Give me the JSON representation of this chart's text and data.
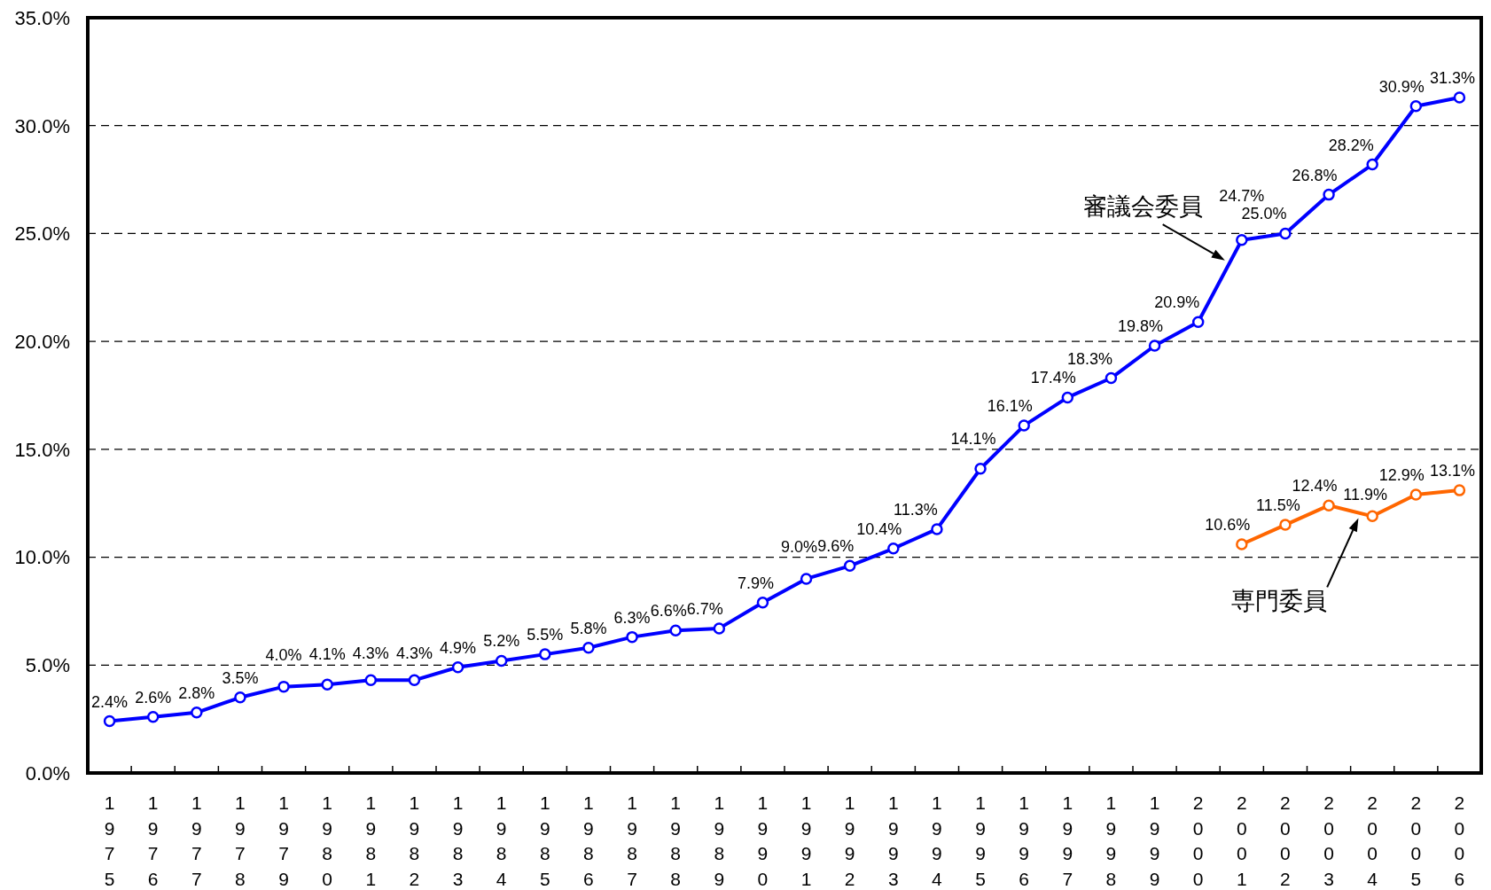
{
  "chart_data": {
    "type": "line",
    "categories": [
      "1975",
      "1976",
      "1977",
      "1978",
      "1979",
      "1980",
      "1981",
      "1982",
      "1983",
      "1984",
      "1985",
      "1986",
      "1987",
      "1988",
      "1989",
      "1990",
      "1991",
      "1992",
      "1993",
      "1994",
      "1995",
      "1996",
      "1997",
      "1998",
      "1999",
      "2000",
      "2001",
      "2002",
      "2003",
      "2004",
      "2005",
      "2006"
    ],
    "series": [
      {
        "name": "審議会委員",
        "color": "#0000ff",
        "values": [
          2.4,
          2.6,
          2.8,
          3.5,
          4.0,
          4.1,
          4.3,
          4.3,
          4.9,
          5.2,
          5.5,
          5.8,
          6.3,
          6.6,
          6.7,
          7.9,
          9.0,
          9.6,
          10.4,
          11.3,
          14.1,
          16.1,
          17.4,
          18.3,
          19.8,
          20.9,
          24.7,
          25.0,
          26.8,
          28.2,
          30.9,
          31.3
        ],
        "value_labels": [
          "2.4%",
          "2.6%",
          "2.8%",
          "3.5%",
          "4.0%",
          "4.1%",
          "4.3%",
          "4.3%",
          "4.9%",
          "5.2%",
          "5.5%",
          "5.8%",
          "6.3%",
          "6.6%",
          "6.7%",
          "7.9%",
          "9.0%",
          "9.6%",
          "10.4%",
          "11.3%",
          "14.1%",
          "16.1%",
          "17.4%",
          "18.3%",
          "19.8%",
          "20.9%",
          "24.7%",
          "25.0%",
          "26.8%",
          "28.2%",
          "30.9%",
          "31.3%"
        ]
      },
      {
        "name": "専門委員",
        "color": "#ff6600",
        "values": [
          null,
          null,
          null,
          null,
          null,
          null,
          null,
          null,
          null,
          null,
          null,
          null,
          null,
          null,
          null,
          null,
          null,
          null,
          null,
          null,
          null,
          null,
          null,
          null,
          null,
          null,
          10.6,
          11.5,
          12.4,
          11.9,
          12.9,
          13.1
        ],
        "value_labels": [
          null,
          null,
          null,
          null,
          null,
          null,
          null,
          null,
          null,
          null,
          null,
          null,
          null,
          null,
          null,
          null,
          null,
          null,
          null,
          null,
          null,
          null,
          null,
          null,
          null,
          null,
          "10.6%",
          "11.5%",
          "12.4%",
          "11.9%",
          "12.9%",
          "13.1%"
        ]
      }
    ],
    "ylim": [
      0,
      35
    ],
    "yticks": [
      {
        "value": 0,
        "label": "0.0%"
      },
      {
        "value": 5,
        "label": "5.0%"
      },
      {
        "value": 10,
        "label": "10.0%"
      },
      {
        "value": 15,
        "label": "15.0%"
      },
      {
        "value": 20,
        "label": "20.0%"
      },
      {
        "value": 25,
        "label": "25.0%"
      },
      {
        "value": 30,
        "label": "30.0%"
      },
      {
        "value": 35,
        "label": "35.0%"
      }
    ],
    "grid": "y",
    "marker": "circle",
    "line_style": "solid"
  }
}
